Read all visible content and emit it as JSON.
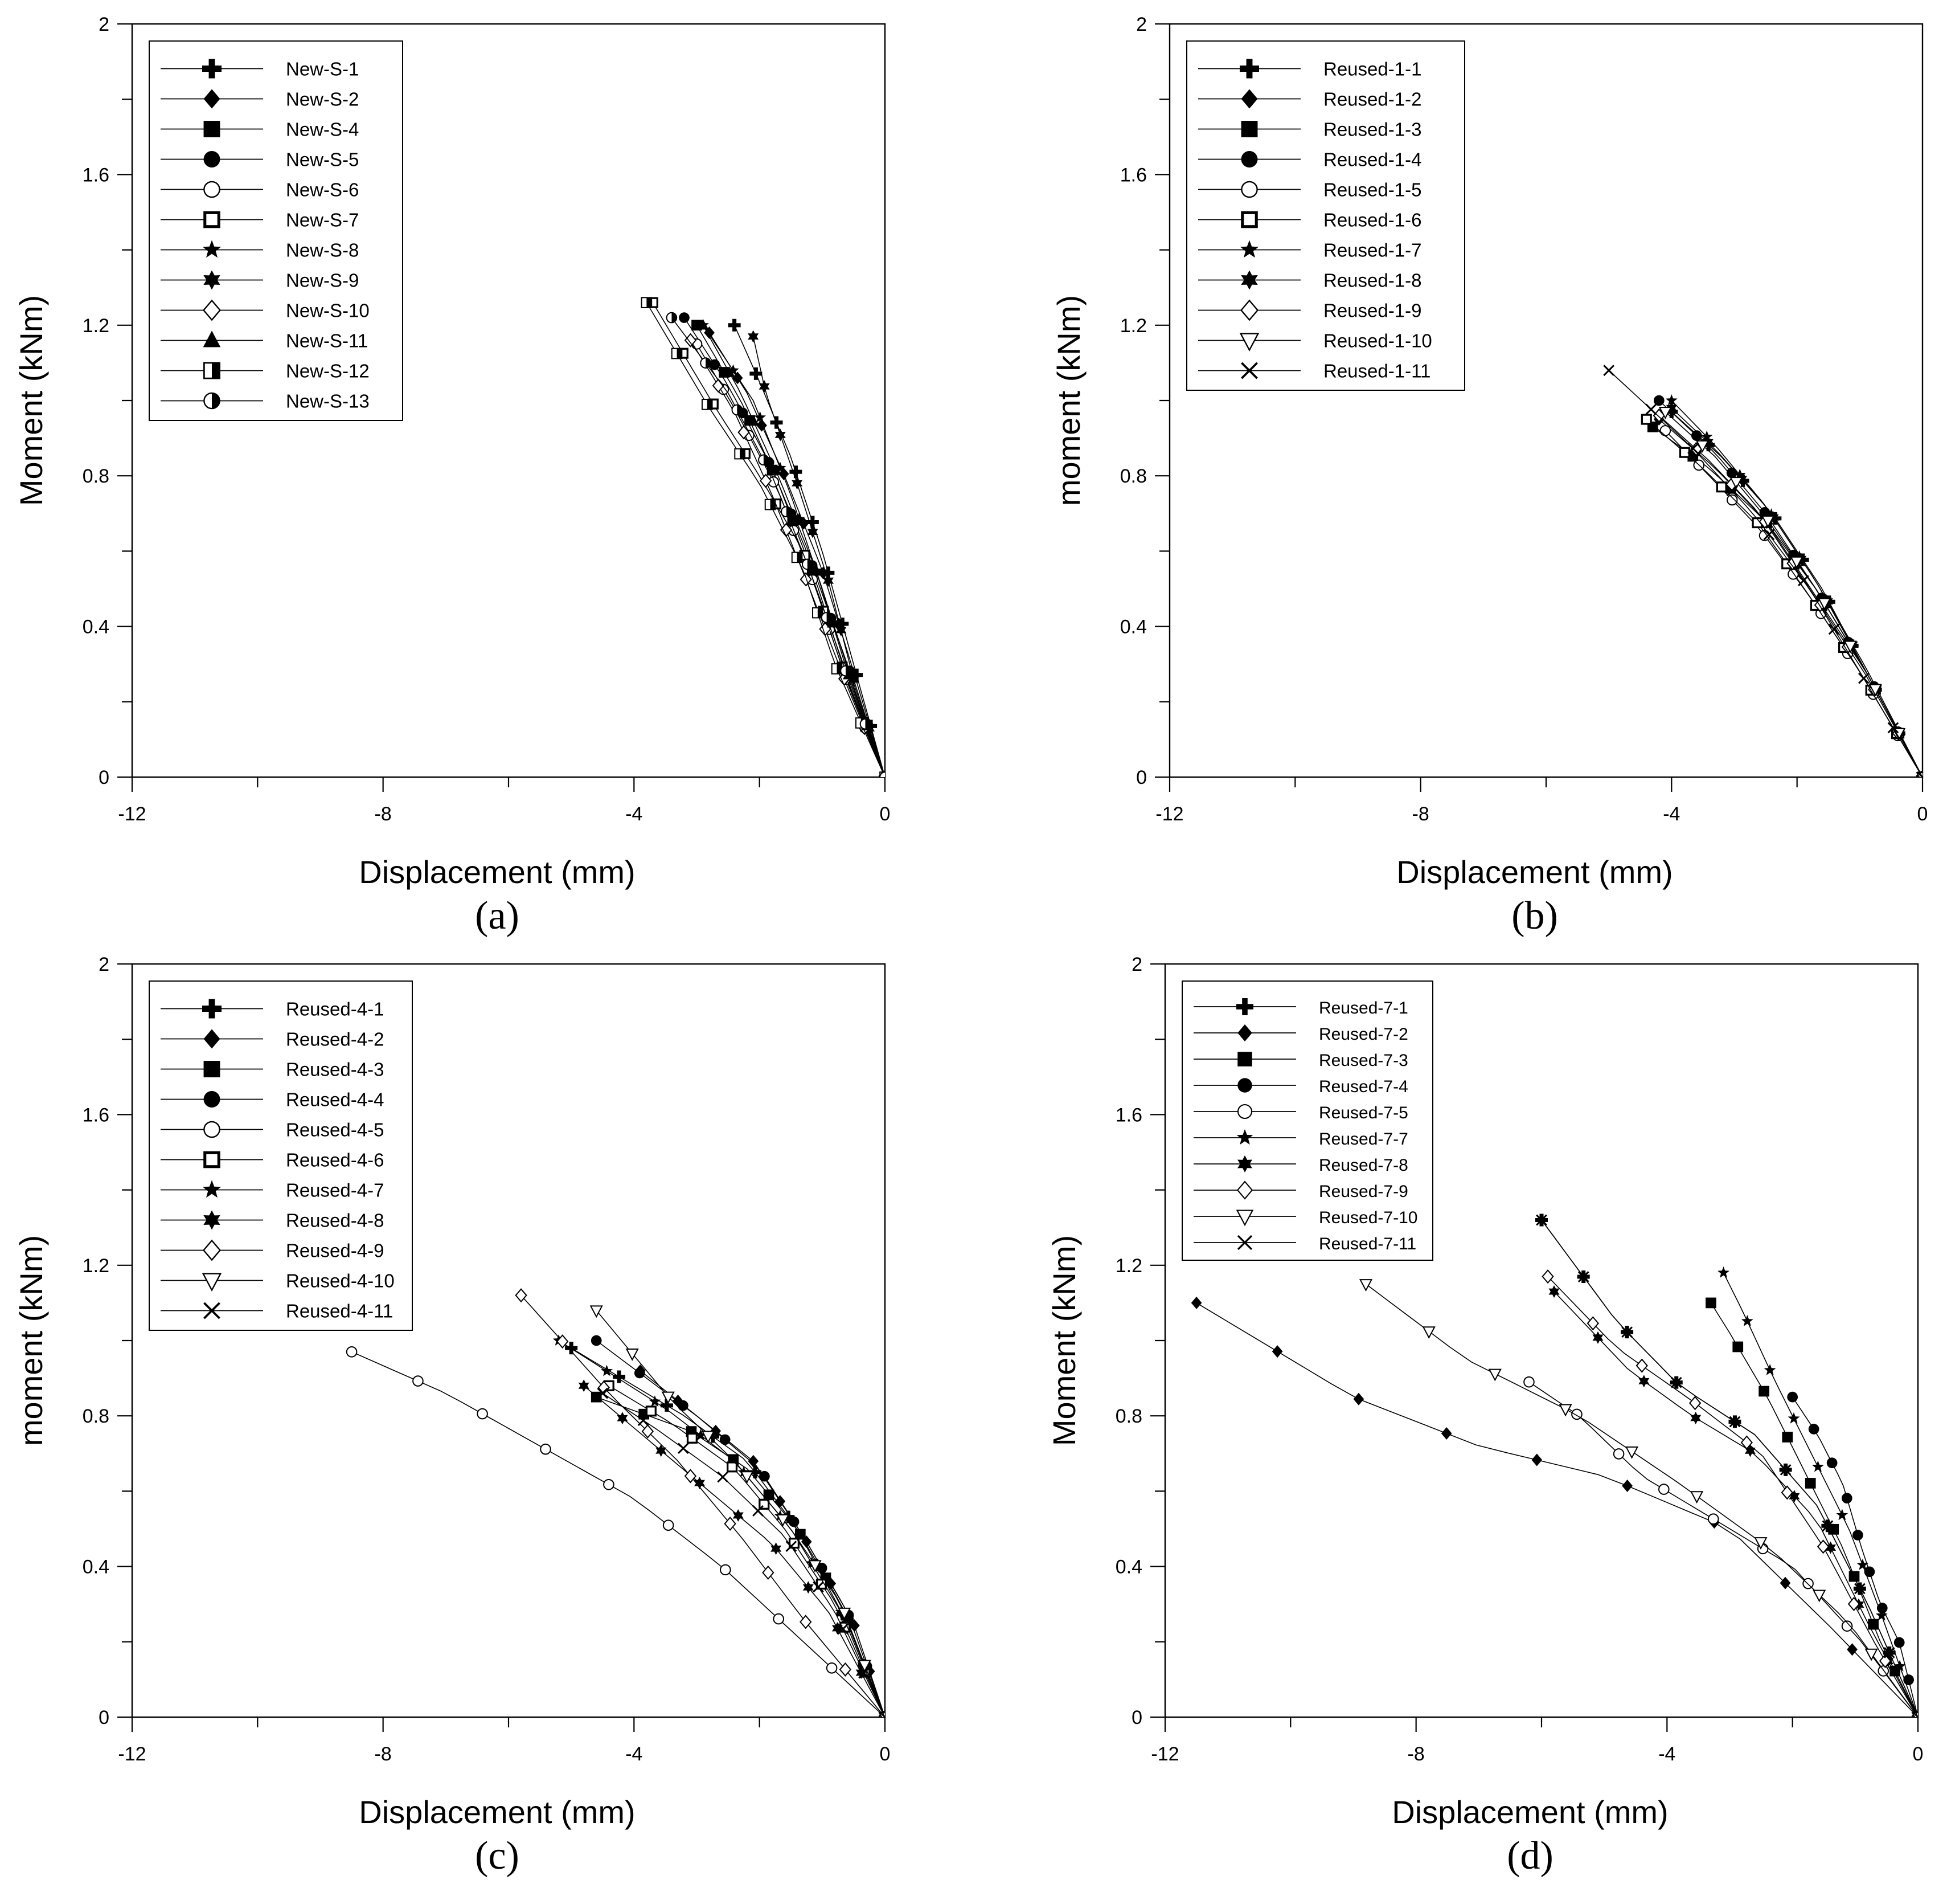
{
  "figure": {
    "panel_labels": [
      "(a)",
      "(b)",
      "(c)",
      "(d)"
    ]
  },
  "colors": {
    "ink": "#000000",
    "background": "#ffffff"
  },
  "chart_data": [
    {
      "type": "line",
      "panel": "(a)",
      "xlabel": "Displacement (mm)",
      "ylabel": "Moment (kNm)",
      "xlim": [
        -12,
        0
      ],
      "ylim": [
        0,
        2
      ],
      "xticks": [
        -12,
        -8,
        -4,
        0
      ],
      "xtick_labels": [
        "-12",
        "-8",
        "-4",
        "0"
      ],
      "yticks": [
        0,
        0.4,
        0.8,
        1.2,
        1.6,
        2
      ],
      "ytick_labels": [
        "0",
        "0.4",
        "0.8",
        "1.2",
        "1.6",
        "2"
      ],
      "legend_position": "top-left",
      "series": [
        {
          "name": "New-S-1",
          "marker": "plus-filled",
          "x": [
            0,
            -0.5,
            -1.0,
            -1.5,
            -2.0,
            -2.4
          ],
          "y": [
            0,
            0.3,
            0.6,
            0.85,
            1.05,
            1.2
          ]
        },
        {
          "name": "New-S-2",
          "marker": "diamond-filled",
          "x": [
            0,
            -0.5,
            -1.0,
            -1.6,
            -2.2,
            -2.8
          ],
          "y": [
            0,
            0.28,
            0.55,
            0.8,
            1.02,
            1.18
          ]
        },
        {
          "name": "New-S-4",
          "marker": "square-filled",
          "x": [
            0,
            -0.6,
            -1.1,
            -1.7,
            -2.3,
            -3.0
          ],
          "y": [
            0,
            0.26,
            0.52,
            0.78,
            1.0,
            1.2
          ]
        },
        {
          "name": "New-S-5",
          "marker": "circle-filled",
          "x": [
            0,
            -0.6,
            -1.2,
            -1.8,
            -2.5,
            -3.2
          ],
          "y": [
            0,
            0.3,
            0.58,
            0.82,
            1.04,
            1.22
          ]
        },
        {
          "name": "New-S-6",
          "marker": "circle-open",
          "x": [
            0,
            -0.6,
            -1.1,
            -1.7,
            -2.4,
            -3.0
          ],
          "y": [
            0,
            0.25,
            0.5,
            0.76,
            0.98,
            1.15
          ]
        },
        {
          "name": "New-S-7",
          "marker": "square-open-bold",
          "x": [
            0,
            -0.7,
            -1.3,
            -2.0,
            -2.7,
            -3.7
          ],
          "y": [
            0,
            0.3,
            0.6,
            0.8,
            0.98,
            1.26
          ]
        },
        {
          "name": "New-S-8",
          "marker": "star5-filled",
          "x": [
            0,
            -0.5,
            -1.0,
            -1.5,
            -2.1,
            -2.9
          ],
          "y": [
            0,
            0.24,
            0.5,
            0.75,
            1.0,
            1.2
          ]
        },
        {
          "name": "New-S-9",
          "marker": "star6-filled",
          "x": [
            0,
            -0.5,
            -0.9,
            -1.4,
            -1.9,
            -2.1
          ],
          "y": [
            0,
            0.26,
            0.52,
            0.78,
            1.02,
            1.17
          ]
        },
        {
          "name": "New-S-10",
          "marker": "diamond-open",
          "x": [
            0,
            -0.6,
            -1.2,
            -1.8,
            -2.4,
            -3.1
          ],
          "y": [
            0,
            0.24,
            0.5,
            0.75,
            0.97,
            1.16
          ]
        },
        {
          "name": "New-S-11",
          "marker": "triangle-filled",
          "x": [
            0,
            -0.6,
            -1.1,
            -1.7,
            -2.3,
            -2.9
          ],
          "y": [
            0,
            0.28,
            0.55,
            0.8,
            1.02,
            1.2
          ]
        },
        {
          "name": "New-S-12",
          "marker": "square-half",
          "x": [
            0,
            -0.8,
            -1.3,
            -2.0,
            -2.8,
            -3.8
          ],
          "y": [
            0,
            0.3,
            0.55,
            0.78,
            0.98,
            1.26
          ]
        },
        {
          "name": "New-S-13",
          "marker": "circle-half",
          "x": [
            0,
            -0.6,
            -1.2,
            -1.8,
            -2.5,
            -3.4
          ],
          "y": [
            0,
            0.27,
            0.55,
            0.8,
            1.02,
            1.22
          ]
        }
      ]
    },
    {
      "type": "line",
      "panel": "(b)",
      "xlabel": "Displacement (mm)",
      "ylabel": "moment (kNm)",
      "xlim": [
        -12,
        0
      ],
      "ylim": [
        0,
        2
      ],
      "xticks": [
        -12,
        -8,
        -4,
        0
      ],
      "xtick_labels": [
        "-12",
        "-8",
        "-4",
        "0"
      ],
      "yticks": [
        0,
        0.4,
        0.8,
        1.2,
        1.6,
        2
      ],
      "ytick_labels": [
        "0",
        "0.4",
        "0.8",
        "1.2",
        "1.6",
        "2"
      ],
      "legend_position": "top-left",
      "series": [
        {
          "name": "Reused-1-1",
          "marker": "plus-filled",
          "x": [
            0,
            -0.9,
            -1.6,
            -2.4,
            -3.2,
            -4.0
          ],
          "y": [
            0,
            0.28,
            0.5,
            0.7,
            0.85,
            0.97
          ]
        },
        {
          "name": "Reused-1-2",
          "marker": "diamond-filled",
          "x": [
            0,
            -0.9,
            -1.7,
            -2.5,
            -3.3,
            -4.2
          ],
          "y": [
            0,
            0.28,
            0.5,
            0.68,
            0.82,
            0.95
          ]
        },
        {
          "name": "Reused-1-3",
          "marker": "square-filled",
          "x": [
            0,
            -0.9,
            -1.7,
            -2.5,
            -3.4,
            -4.3
          ],
          "y": [
            0,
            0.28,
            0.48,
            0.68,
            0.82,
            0.93
          ]
        },
        {
          "name": "Reused-1-4",
          "marker": "circle-filled",
          "x": [
            0,
            -0.9,
            -1.7,
            -2.5,
            -3.3,
            -4.2
          ],
          "y": [
            0,
            0.28,
            0.5,
            0.7,
            0.86,
            1.0
          ]
        },
        {
          "name": "Reused-1-5",
          "marker": "circle-open",
          "x": [
            0,
            -1.0,
            -1.8,
            -2.6,
            -3.4,
            -4.1
          ],
          "y": [
            0,
            0.28,
            0.48,
            0.66,
            0.8,
            0.92
          ]
        },
        {
          "name": "Reused-1-6",
          "marker": "square-open-bold",
          "x": [
            0,
            -1.0,
            -1.8,
            -2.6,
            -3.5,
            -4.4
          ],
          "y": [
            0,
            0.28,
            0.48,
            0.67,
            0.82,
            0.95
          ]
        },
        {
          "name": "Reused-1-7",
          "marker": "star5-filled",
          "x": [
            0,
            -0.9,
            -1.7,
            -2.5,
            -3.3,
            -4.0
          ],
          "y": [
            0,
            0.28,
            0.52,
            0.72,
            0.88,
            1.0
          ]
        },
        {
          "name": "Reused-1-8",
          "marker": "star6-filled",
          "x": [
            0,
            -0.9,
            -1.7,
            -2.5,
            -3.3,
            -4.0
          ],
          "y": [
            0,
            0.29,
            0.52,
            0.72,
            0.87,
            0.98
          ]
        },
        {
          "name": "Reused-1-9",
          "marker": "diamond-open",
          "x": [
            0,
            -0.9,
            -1.8,
            -2.6,
            -3.4,
            -4.2
          ],
          "y": [
            0,
            0.27,
            0.5,
            0.7,
            0.84,
            0.96
          ]
        },
        {
          "name": "Reused-1-10",
          "marker": "triangle-down-open",
          "x": [
            0,
            -0.9,
            -1.7,
            -2.5,
            -3.3,
            -4.1
          ],
          "y": [
            0,
            0.28,
            0.5,
            0.69,
            0.85,
            0.97
          ]
        },
        {
          "name": "Reused-1-11",
          "marker": "x-cross",
          "x": [
            0,
            -1.0,
            -1.8,
            -2.7,
            -3.7,
            -5.0
          ],
          "y": [
            0,
            0.28,
            0.5,
            0.7,
            0.88,
            1.08
          ]
        }
      ]
    },
    {
      "type": "line",
      "panel": "(c)",
      "xlabel": "Displacement (mm)",
      "ylabel": "moment (kNm)",
      "xlim": [
        -12,
        0
      ],
      "ylim": [
        0,
        2
      ],
      "xticks": [
        -12,
        -8,
        -4,
        0
      ],
      "xtick_labels": [
        "-12",
        "-8",
        "-4",
        "0"
      ],
      "yticks": [
        0,
        0.4,
        0.8,
        1.2,
        1.6,
        2
      ],
      "ytick_labels": [
        "0",
        "0.4",
        "0.8",
        "1.2",
        "1.6",
        "2"
      ],
      "legend_position": "top-left",
      "series": [
        {
          "name": "Reused-4-1",
          "marker": "plus-filled",
          "x": [
            0,
            -0.6,
            -1.4,
            -2.2,
            -3.2,
            -5.0
          ],
          "y": [
            0,
            0.25,
            0.5,
            0.68,
            0.8,
            0.98
          ]
        },
        {
          "name": "Reused-4-2",
          "marker": "diamond-filled",
          "x": [
            0,
            -0.5,
            -1.3,
            -2.1,
            -3.0,
            -3.9
          ],
          "y": [
            0,
            0.25,
            0.48,
            0.68,
            0.8,
            0.92
          ]
        },
        {
          "name": "Reused-4-3",
          "marker": "square-filled",
          "x": [
            0,
            -0.7,
            -1.4,
            -2.2,
            -3.1,
            -4.6
          ],
          "y": [
            0,
            0.3,
            0.5,
            0.66,
            0.76,
            0.85
          ]
        },
        {
          "name": "Reused-4-4",
          "marker": "circle-filled",
          "x": [
            0,
            -0.6,
            -1.3,
            -2.0,
            -3.0,
            -4.6
          ],
          "y": [
            0,
            0.28,
            0.48,
            0.66,
            0.8,
            1.0
          ]
        },
        {
          "name": "Reused-4-5",
          "marker": "circle-open",
          "x": [
            0,
            -2.6,
            -4.0,
            -5.5,
            -7.0,
            -8.5
          ],
          "y": [
            0,
            0.4,
            0.58,
            0.72,
            0.86,
            0.97
          ]
        },
        {
          "name": "Reused-4-6",
          "marker": "square-open-bold",
          "x": [
            0,
            -0.8,
            -1.6,
            -2.4,
            -3.4,
            -4.4
          ],
          "y": [
            0,
            0.3,
            0.5,
            0.66,
            0.78,
            0.88
          ]
        },
        {
          "name": "Reused-4-7",
          "marker": "star5-filled",
          "x": [
            0,
            -0.7,
            -1.5,
            -2.4,
            -3.5,
            -5.2
          ],
          "y": [
            0,
            0.28,
            0.5,
            0.68,
            0.82,
            1.0
          ]
        },
        {
          "name": "Reused-4-8",
          "marker": "star6-filled",
          "x": [
            0,
            -0.9,
            -1.8,
            -2.8,
            -3.8,
            -4.8
          ],
          "y": [
            0,
            0.28,
            0.46,
            0.6,
            0.74,
            0.88
          ]
        },
        {
          "name": "Reused-4-9",
          "marker": "diamond-open",
          "x": [
            0,
            -1.3,
            -2.3,
            -3.3,
            -4.4,
            -5.8
          ],
          "y": [
            0,
            0.26,
            0.48,
            0.68,
            0.86,
            1.12
          ]
        },
        {
          "name": "Reused-4-10",
          "marker": "triangle-down-open",
          "x": [
            0,
            -0.7,
            -1.5,
            -2.4,
            -3.4,
            -4.6
          ],
          "y": [
            0,
            0.3,
            0.5,
            0.68,
            0.84,
            1.08
          ]
        },
        {
          "name": "Reused-4-11",
          "marker": "x-cross",
          "x": [
            0,
            -0.8,
            -1.6,
            -2.6,
            -3.6,
            -4.5
          ],
          "y": [
            0,
            0.28,
            0.48,
            0.64,
            0.76,
            0.86
          ]
        }
      ]
    },
    {
      "type": "line",
      "panel": "(d)",
      "xlabel": "Displacement (mm)",
      "ylabel": "Moment (kNm)",
      "xlim": [
        -12,
        0
      ],
      "ylim": [
        0,
        2
      ],
      "xticks": [
        -12,
        -8,
        -4,
        0
      ],
      "xtick_labels": [
        "-12",
        "-8",
        "-4",
        "0"
      ],
      "yticks": [
        0,
        0.4,
        0.8,
        1.2,
        1.6,
        2
      ],
      "ytick_labels": [
        "0",
        "0.4",
        "0.8",
        "1.2",
        "1.6",
        "2"
      ],
      "legend_position": "top-left",
      "series": [
        {
          "name": "Reused-7-1",
          "marker": "plus-filled",
          "x": [
            0,
            -0.8,
            -1.6,
            -2.6,
            -3.8,
            -4.8,
            -6.0
          ],
          "y": [
            0,
            0.3,
            0.56,
            0.75,
            0.88,
            1.05,
            1.32
          ]
        },
        {
          "name": "Reused-7-2",
          "marker": "diamond-filled",
          "x": [
            0,
            -1.4,
            -3.0,
            -5.0,
            -7.0,
            -9.0,
            -11.5
          ],
          "y": [
            0,
            0.24,
            0.5,
            0.64,
            0.72,
            0.85,
            1.1
          ]
        },
        {
          "name": "Reused-7-3",
          "marker": "square-filled",
          "x": [
            0,
            -0.6,
            -1.2,
            -1.8,
            -2.4,
            -3.0,
            -3.3
          ],
          "y": [
            0,
            0.2,
            0.45,
            0.65,
            0.85,
            1.02,
            1.1
          ]
        },
        {
          "name": "Reused-7-4",
          "marker": "circle-filled",
          "x": [
            0,
            -0.3,
            -0.6,
            -0.9,
            -1.2,
            -1.6,
            -2.0
          ],
          "y": [
            0,
            0.2,
            0.3,
            0.45,
            0.62,
            0.75,
            0.85
          ]
        },
        {
          "name": "Reused-7-5",
          "marker": "circle-open",
          "x": [
            0,
            -0.9,
            -2.0,
            -3.2,
            -4.4,
            -5.4,
            -6.2
          ],
          "y": [
            0,
            0.2,
            0.4,
            0.52,
            0.64,
            0.8,
            0.89
          ]
        },
        {
          "name": "Reused-7-7",
          "marker": "star5-filled",
          "x": [
            0,
            -0.6,
            -1.1,
            -1.7,
            -2.3,
            -2.8,
            -3.1
          ],
          "y": [
            0,
            0.28,
            0.5,
            0.7,
            0.9,
            1.08,
            1.18
          ]
        },
        {
          "name": "Reused-7-8",
          "marker": "star6-filled",
          "x": [
            0,
            -0.8,
            -1.6,
            -2.6,
            -3.6,
            -4.6,
            -5.8
          ],
          "y": [
            0,
            0.25,
            0.52,
            0.7,
            0.8,
            0.92,
            1.13
          ]
        },
        {
          "name": "Reused-7-9",
          "marker": "diamond-open",
          "x": [
            0,
            -0.7,
            -1.5,
            -2.5,
            -3.6,
            -4.8,
            -5.9
          ],
          "y": [
            0,
            0.2,
            0.45,
            0.7,
            0.84,
            0.98,
            1.17
          ]
        },
        {
          "name": "Reused-7-10",
          "marker": "triangle-down-open",
          "x": [
            0,
            -1.1,
            -2.3,
            -3.8,
            -5.4,
            -7.2,
            -8.8
          ],
          "y": [
            0,
            0.25,
            0.44,
            0.62,
            0.8,
            0.95,
            1.15
          ]
        },
        {
          "name": "Reused-7-11",
          "marker": "x-cross",
          "x": [
            0,
            -0.8,
            -1.6,
            -2.6,
            -3.8,
            -4.8,
            -6.0
          ],
          "y": [
            0,
            0.3,
            0.56,
            0.75,
            0.88,
            1.05,
            1.32
          ]
        }
      ]
    }
  ]
}
